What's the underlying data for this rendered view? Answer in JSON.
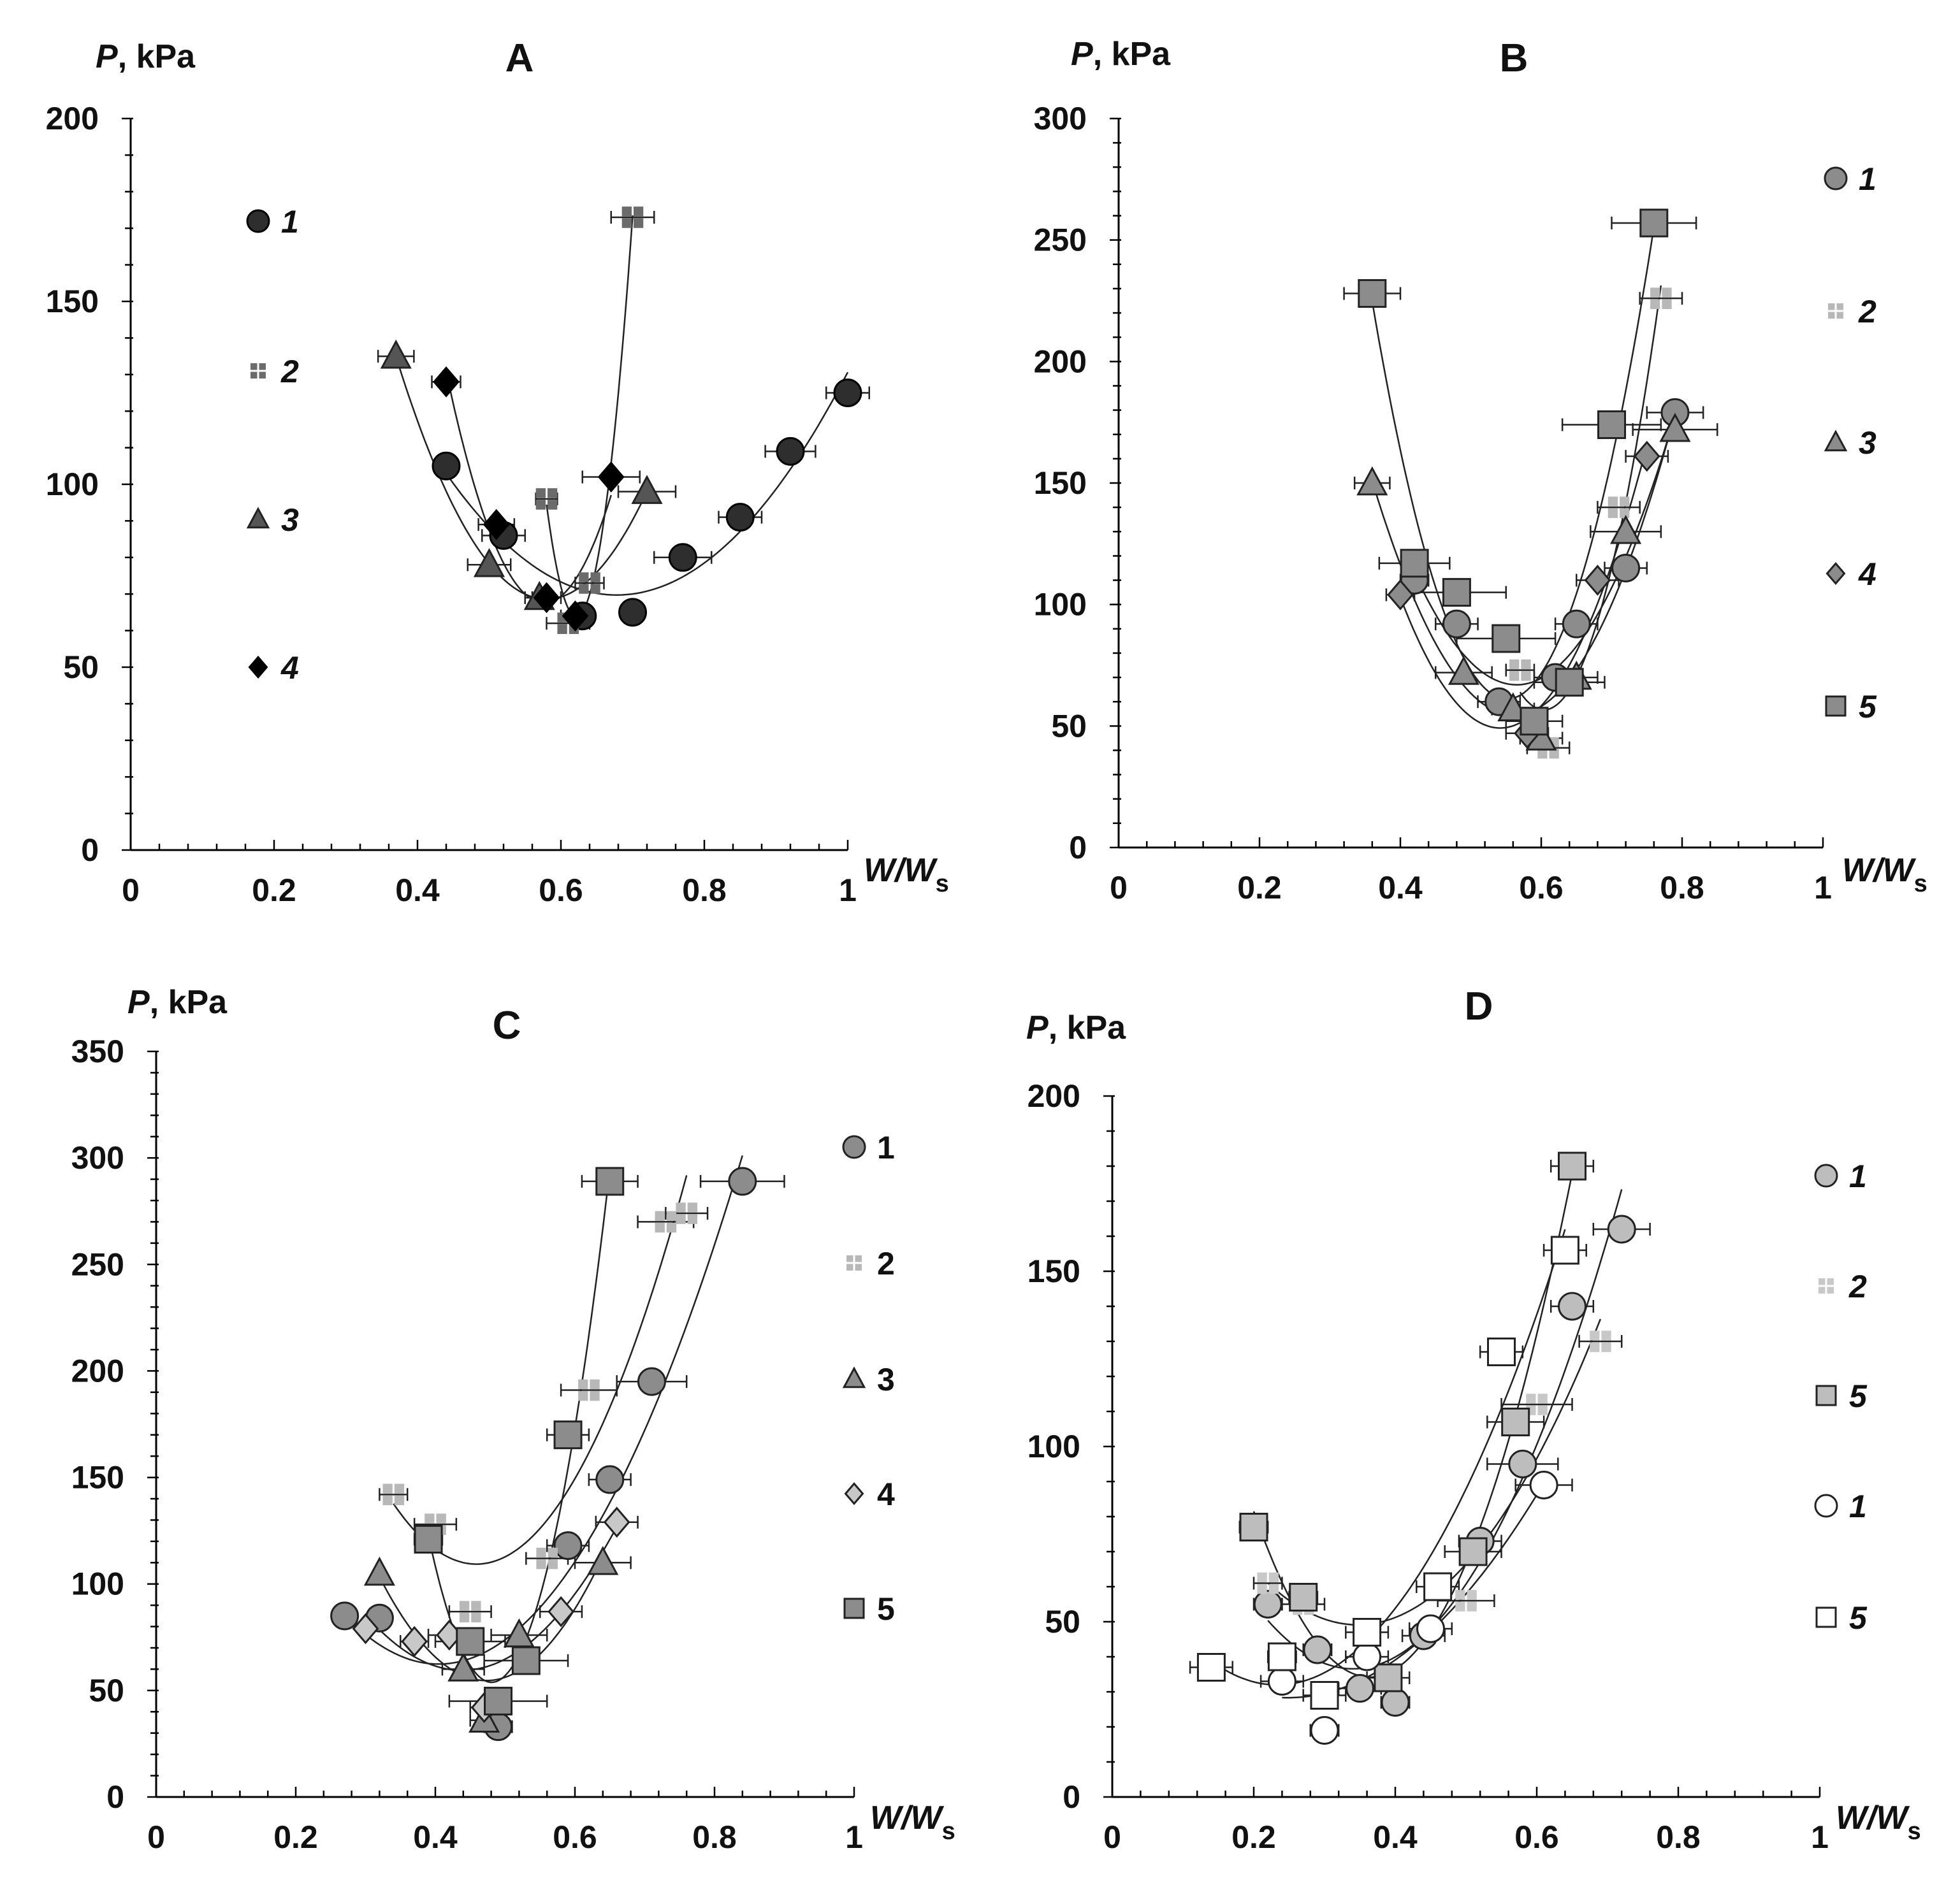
{
  "chart_data": [
    {
      "type": "scatter",
      "title": "A",
      "ylabel_italic": "P",
      "ylabel_rest": ", kPa",
      "xlabel_main": "W/W",
      "xlabel_sub": "s",
      "xlim": [
        0,
        1
      ],
      "ylim": [
        0,
        200
      ],
      "xticks": [
        0,
        0.2,
        0.4,
        0.6,
        0.8,
        1
      ],
      "xtick_labels": [
        "0",
        "0.2",
        "0.4",
        "0.6",
        "0.8",
        "1"
      ],
      "yticks": [
        0,
        50,
        100,
        150,
        200
      ],
      "ytick_labels": [
        "0",
        "50",
        "100",
        "150",
        "200"
      ],
      "legend_italic": true,
      "series": [
        {
          "name": "1",
          "marker": "circle",
          "fill": "#2e2e2e",
          "stroke": "#000000",
          "points": [
            [
              0.44,
              105,
              0
            ],
            [
              0.52,
              86,
              0.03
            ],
            [
              0.63,
              64,
              0
            ],
            [
              0.7,
              65,
              0
            ],
            [
              0.77,
              80,
              0.04
            ],
            [
              0.85,
              91,
              0.03
            ],
            [
              0.92,
              109,
              0.035
            ],
            [
              1.0,
              125,
              0.03
            ]
          ]
        },
        {
          "name": "2",
          "marker": "plus-square",
          "fill": "#6b6b6b",
          "stroke": "#555555",
          "points": [
            [
              0.58,
              96,
              0.015
            ],
            [
              0.61,
              62,
              0.03
            ],
            [
              0.64,
              73,
              0.02
            ],
            [
              0.7,
              173,
              0.03
            ]
          ]
        },
        {
          "name": "3",
          "marker": "triangle",
          "fill": "#555555",
          "stroke": "#222222",
          "points": [
            [
              0.37,
              135,
              0.025
            ],
            [
              0.5,
              78,
              0.03
            ],
            [
              0.57,
              69,
              0.02
            ],
            [
              0.72,
              98,
              0.04
            ]
          ]
        },
        {
          "name": "4",
          "marker": "diamond",
          "fill": "#000000",
          "stroke": "#000000",
          "points": [
            [
              0.44,
              128,
              0.02
            ],
            [
              0.51,
              89,
              0.025
            ],
            [
              0.58,
              69,
              0.02
            ],
            [
              0.62,
              64,
              0.02
            ],
            [
              0.67,
              102,
              0.04
            ]
          ]
        }
      ]
    },
    {
      "type": "scatter",
      "title": "B",
      "ylabel_italic": "P",
      "ylabel_rest": ", kPa",
      "xlabel_main": "W/W",
      "xlabel_sub": "s",
      "xlim": [
        0,
        1
      ],
      "ylim": [
        0,
        300
      ],
      "xticks": [
        0,
        0.2,
        0.4,
        0.6,
        0.8,
        1
      ],
      "xtick_labels": [
        "0",
        "0.2",
        "0.4",
        "0.6",
        "0.8",
        "1"
      ],
      "yticks": [
        0,
        50,
        100,
        150,
        200,
        250,
        300
      ],
      "ytick_labels": [
        "0",
        "50",
        "100",
        "150",
        "200",
        "250",
        "300"
      ],
      "legend_italic": true,
      "series": [
        {
          "name": "1",
          "marker": "circle",
          "fill": "#8c8c8c",
          "stroke": "#222222",
          "points": [
            [
              0.42,
              110,
              0.02
            ],
            [
              0.48,
              92,
              0.03
            ],
            [
              0.54,
              60,
              0.03
            ],
            [
              0.62,
              70,
              0.03
            ],
            [
              0.65,
              92,
              0.03
            ],
            [
              0.72,
              115,
              0.03
            ],
            [
              0.79,
              179,
              0.04
            ]
          ]
        },
        {
          "name": "2",
          "marker": "plus-square",
          "fill": "#b8b8b8",
          "stroke": "#b8b8b8",
          "points": [
            [
              0.57,
              73,
              0.02
            ],
            [
              0.61,
              41,
              0.03
            ],
            [
              0.71,
              140,
              0.03
            ],
            [
              0.77,
              226,
              0.03
            ]
          ]
        },
        {
          "name": "3",
          "marker": "triangle",
          "fill": "#8c8c8c",
          "stroke": "#222222",
          "points": [
            [
              0.36,
              150,
              0.025
            ],
            [
              0.49,
              72,
              0.04
            ],
            [
              0.56,
              57,
              0.03
            ],
            [
              0.6,
              45,
              0.03
            ],
            [
              0.65,
              70,
              0.03
            ],
            [
              0.72,
              130,
              0.05
            ],
            [
              0.79,
              172,
              0.06
            ]
          ]
        },
        {
          "name": "4",
          "marker": "diamond",
          "fill": "#8c8c8c",
          "stroke": "#222222",
          "points": [
            [
              0.4,
              104,
              0.02
            ],
            [
              0.58,
              47,
              0.03
            ],
            [
              0.68,
              110,
              0.03
            ],
            [
              0.75,
              161,
              0.03
            ]
          ]
        },
        {
          "name": "5",
          "marker": "square",
          "fill": "#8c8c8c",
          "stroke": "#222222",
          "points": [
            [
              0.36,
              228,
              0.04
            ],
            [
              0.42,
              117,
              0.05
            ],
            [
              0.48,
              105,
              0.07
            ],
            [
              0.55,
              86,
              0.07
            ],
            [
              0.59,
              52,
              0.04
            ],
            [
              0.64,
              68,
              0.05
            ],
            [
              0.7,
              174,
              0.07
            ],
            [
              0.76,
              257,
              0.06
            ]
          ]
        }
      ]
    },
    {
      "type": "scatter",
      "title": "C",
      "ylabel_italic": "P",
      "ylabel_rest": ", kPa",
      "xlabel_main": "W/W",
      "xlabel_sub": "s",
      "xlim": [
        0,
        1
      ],
      "ylim": [
        0,
        350
      ],
      "xticks": [
        0,
        0.2,
        0.4,
        0.6,
        0.8,
        1
      ],
      "xtick_labels": [
        "0",
        "0.2",
        "0.4",
        "0.6",
        "0.8",
        "1"
      ],
      "yticks": [
        0,
        50,
        100,
        150,
        200,
        250,
        300,
        350
      ],
      "ytick_labels": [
        "0",
        "50",
        "100",
        "150",
        "200",
        "250",
        "300",
        "350"
      ],
      "legend_italic": false,
      "series": [
        {
          "name": "1",
          "marker": "circle",
          "fill": "#8c8c8c",
          "stroke": "#222222",
          "points": [
            [
              0.27,
              85,
              0
            ],
            [
              0.32,
              84,
              0
            ],
            [
              0.49,
              33,
              0.02
            ],
            [
              0.59,
              118,
              0.03
            ],
            [
              0.65,
              149,
              0.03
            ],
            [
              0.71,
              195,
              0.05
            ],
            [
              0.84,
              289,
              0.06
            ]
          ]
        },
        {
          "name": "2",
          "marker": "plus-square",
          "fill": "#b8b8b8",
          "stroke": "#b8b8b8",
          "points": [
            [
              0.34,
              142,
              0.02
            ],
            [
              0.4,
              128,
              0.03
            ],
            [
              0.45,
              87,
              0.03
            ],
            [
              0.56,
              112,
              0.03
            ],
            [
              0.62,
              191,
              0.04
            ],
            [
              0.73,
              270,
              0.04
            ],
            [
              0.76,
              274,
              0.03
            ]
          ]
        },
        {
          "name": "3",
          "marker": "triangle",
          "fill": "#8c8c8c",
          "stroke": "#222222",
          "points": [
            [
              0.32,
              105,
              0
            ],
            [
              0.44,
              60,
              0.03
            ],
            [
              0.47,
              36,
              0.02
            ],
            [
              0.52,
              76,
              0.04
            ],
            [
              0.64,
              110,
              0.04
            ]
          ]
        },
        {
          "name": "4",
          "marker": "diamond",
          "fill": "#c8c8c8",
          "stroke": "#222222",
          "points": [
            [
              0.3,
              79,
              0
            ],
            [
              0.37,
              73,
              0.02
            ],
            [
              0.42,
              76,
              0.03
            ],
            [
              0.47,
              42,
              0.02
            ],
            [
              0.58,
              87,
              0.03
            ],
            [
              0.66,
              129,
              0.03
            ]
          ]
        },
        {
          "name": "5",
          "marker": "square",
          "fill": "#8c8c8c",
          "stroke": "#222222",
          "points": [
            [
              0.39,
              121,
              0.02
            ],
            [
              0.45,
              73,
              0.05
            ],
            [
              0.49,
              45,
              0.07
            ],
            [
              0.53,
              64,
              0.06
            ],
            [
              0.59,
              170,
              0.03
            ],
            [
              0.65,
              289,
              0.04
            ]
          ]
        }
      ]
    },
    {
      "type": "scatter",
      "title": "D",
      "ylabel_italic": "P",
      "ylabel_rest": ", kPa",
      "xlabel_main": "W/W",
      "xlabel_sub": "s",
      "xlim": [
        0,
        1
      ],
      "ylim": [
        0,
        200
      ],
      "xticks": [
        0,
        0.2,
        0.4,
        0.6,
        0.8,
        1
      ],
      "xtick_labels": [
        "0",
        "0.2",
        "0.4",
        "0.6",
        "0.8",
        "1"
      ],
      "yticks": [
        0,
        50,
        100,
        150,
        200
      ],
      "ytick_labels": [
        "0",
        "50",
        "100",
        "150",
        "200"
      ],
      "legend_italic": true,
      "series": [
        {
          "name": "1",
          "marker": "circle",
          "fill": "#bdbdbd",
          "stroke": "#222222",
          "points": [
            [
              0.22,
              55,
              0.02
            ],
            [
              0.29,
              42,
              0.02
            ],
            [
              0.35,
              31,
              0.03
            ],
            [
              0.4,
              27,
              0.02
            ],
            [
              0.44,
              46,
              0.03
            ],
            [
              0.52,
              73,
              0.03
            ],
            [
              0.58,
              95,
              0.05
            ],
            [
              0.65,
              140,
              0.03
            ],
            [
              0.72,
              162,
              0.04
            ]
          ]
        },
        {
          "name": "2",
          "marker": "plus-square",
          "fill": "#c8c8c8",
          "stroke": "#c8c8c8",
          "points": [
            [
              0.22,
              61,
              0.02
            ],
            [
              0.27,
              55,
              0.03
            ],
            [
              0.5,
              56,
              0.04
            ],
            [
              0.6,
              112,
              0.05
            ],
            [
              0.69,
              130,
              0.03
            ]
          ]
        },
        {
          "name": "5",
          "marker": "square",
          "fill": "#bdbdbd",
          "stroke": "#222222",
          "points": [
            [
              0.2,
              77,
              0.02
            ],
            [
              0.27,
              57,
              0.02
            ],
            [
              0.39,
              34,
              0.03
            ],
            [
              0.51,
              70,
              0.04
            ],
            [
              0.57,
              107,
              0.04
            ],
            [
              0.65,
              180,
              0.03
            ]
          ]
        },
        {
          "name": "1",
          "marker": "circle",
          "fill": "#ffffff",
          "stroke": "#222222",
          "points": [
            [
              0.24,
              33,
              0.03
            ],
            [
              0.3,
              19,
              0.02
            ],
            [
              0.36,
              40,
              0.03
            ],
            [
              0.45,
              48,
              0.03
            ],
            [
              0.61,
              89,
              0.04
            ]
          ]
        },
        {
          "name": "5",
          "marker": "square",
          "fill": "#ffffff",
          "stroke": "#222222",
          "points": [
            [
              0.14,
              37,
              0.03
            ],
            [
              0.24,
              40,
              0.02
            ],
            [
              0.3,
              29,
              0.03
            ],
            [
              0.36,
              47,
              0.03
            ],
            [
              0.46,
              60,
              0.03
            ],
            [
              0.55,
              127,
              0.03
            ],
            [
              0.64,
              156,
              0.03
            ]
          ]
        }
      ]
    }
  ]
}
